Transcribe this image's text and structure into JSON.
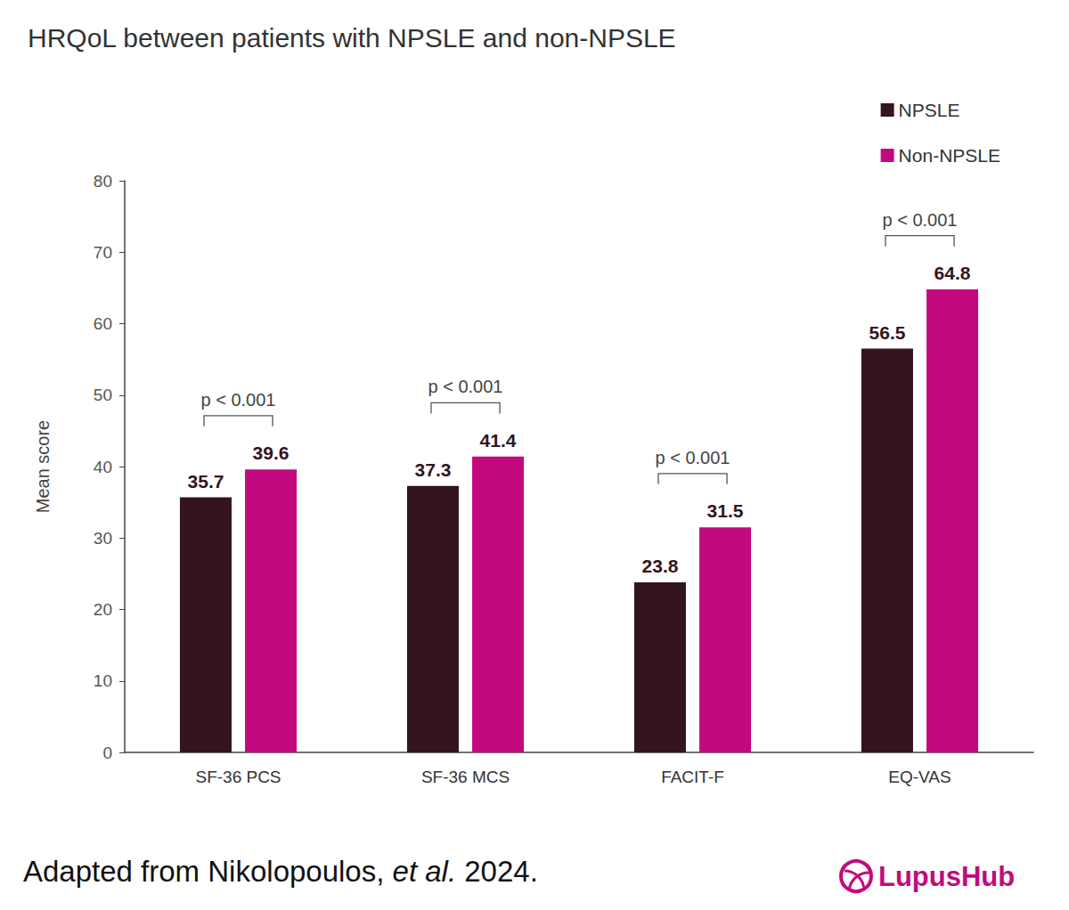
{
  "chart_data": {
    "type": "bar",
    "title": "HRQoL between patients with NPSLE and non-NPSLE",
    "y_label": "Mean score",
    "categories": [
      "SF-36 PCS",
      "SF-36 MCS",
      "FACIT-F",
      "EQ-VAS"
    ],
    "series": [
      {
        "name": "NPSLE",
        "color": "#33141f",
        "values": [
          35.7,
          37.3,
          23.8,
          56.5
        ]
      },
      {
        "name": "Non-NPSLE",
        "color": "#c20a7e",
        "values": [
          39.6,
          41.4,
          31.5,
          64.8
        ]
      }
    ],
    "ylim": [
      0,
      80
    ],
    "yticks": [
      0,
      10,
      20,
      30,
      40,
      50,
      60,
      70,
      80
    ],
    "grid": false,
    "legend": "top-right",
    "data_labels": true,
    "annotations": [
      {
        "text": "p < 0.001",
        "category": "SF-36 PCS"
      },
      {
        "text": "p < 0.001",
        "category": "SF-36 MCS"
      },
      {
        "text": "p < 0.001",
        "category": "FACIT-F"
      },
      {
        "text": "p < 0.001",
        "category": "EQ-VAS"
      }
    ],
    "source": {
      "text": "Adapted from Nikolopoulos, et al. 2024.",
      "italic": "et al."
    },
    "logo": "LupusHub"
  }
}
